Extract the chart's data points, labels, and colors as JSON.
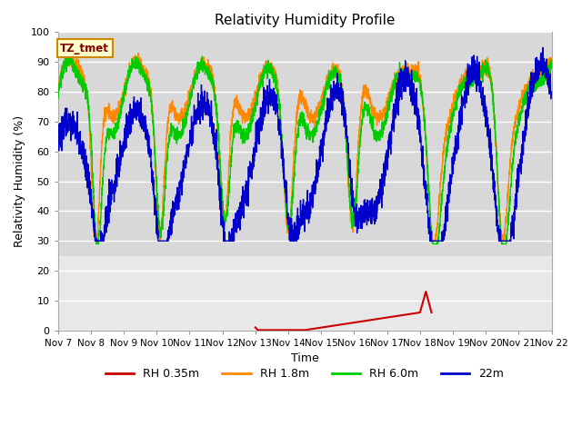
{
  "title": "Relativity Humidity Profile",
  "xlabel": "Time",
  "ylabel": "Relativity Humidity (%)",
  "ylim": [
    0,
    100
  ],
  "xlim": [
    0,
    15
  ],
  "annotation_box": "TZ_tmet",
  "background_upper": "#dcdcdc",
  "background_lower": "#e8e8e8",
  "grid_color": "#ffffff",
  "tick_labels": [
    "Nov 7",
    "Nov 8",
    "Nov 9",
    "Nov 10",
    "Nov 11",
    "Nov 12",
    "Nov 13",
    "Nov 14",
    "Nov 15",
    "Nov 16",
    "Nov 17",
    "Nov 18",
    "Nov 19",
    "Nov 20",
    "Nov 21",
    "Nov 22"
  ],
  "legend": [
    {
      "label": "RH 0.35m",
      "color": "#cc0000"
    },
    {
      "label": "RH 1.8m",
      "color": "#ff8800"
    },
    {
      "label": "RH 6.0m",
      "color": "#00cc00"
    },
    {
      "label": "22m",
      "color": "#0000cc"
    }
  ],
  "yticks": [
    0,
    10,
    20,
    30,
    40,
    50,
    60,
    70,
    80,
    90,
    100
  ],
  "divider_y": 25,
  "red_start_x": 6.0,
  "red_end_x": 11.35,
  "red_spike_x": 11.2,
  "red_spike_y": 13.0,
  "red_end_y": 6.0
}
